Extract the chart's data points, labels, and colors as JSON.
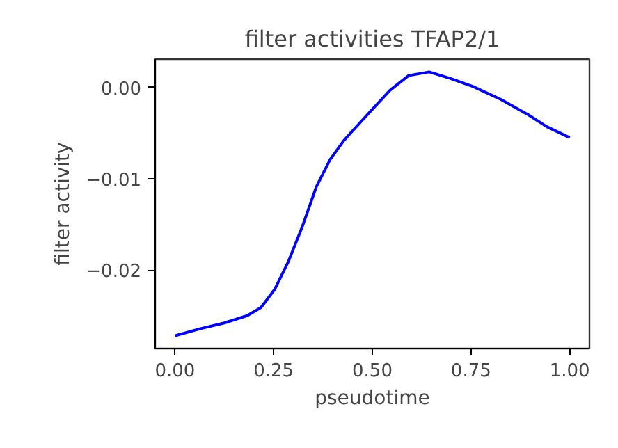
{
  "chart_data": {
    "type": "line",
    "title": "filter activities TFAP2/1",
    "xlabel": "pseudotime",
    "ylabel": "filter activity",
    "x": [
      0,
      0.067,
      0.125,
      0.183,
      0.218,
      0.253,
      0.288,
      0.323,
      0.358,
      0.393,
      0.428,
      0.487,
      0.545,
      0.592,
      0.644,
      0.697,
      0.755,
      0.825,
      0.895,
      0.942,
      1.0
    ],
    "series": [
      {
        "color": "#0000ff",
        "values": [
          -0.0272,
          -0.0264,
          -0.0258,
          -0.025,
          -0.0241,
          -0.0221,
          -0.019,
          -0.0152,
          -0.0109,
          -0.0079,
          -0.0058,
          -0.003,
          -0.0003,
          0.0013,
          0.0017,
          0.001,
          0.0001,
          -0.0013,
          -0.003,
          -0.0043,
          -0.0055
        ]
      }
    ],
    "xlim": [
      -0.05,
      1.05
    ],
    "ylim": [
      -0.0286,
      0.0031
    ],
    "xticks": [
      {
        "value": 0,
        "label": "0.00"
      },
      {
        "value": 0.25,
        "label": "0.25"
      },
      {
        "value": 0.5,
        "label": "0.50"
      },
      {
        "value": 0.75,
        "label": "0.75"
      },
      {
        "value": 1,
        "label": "1.00"
      }
    ],
    "yticks": [
      {
        "value": 0,
        "label": "0.00"
      },
      {
        "value": -0.01,
        "label": "−0.01"
      },
      {
        "value": -0.02,
        "label": "−0.02"
      }
    ],
    "grid": false,
    "marker": "none",
    "line_style": "solid"
  }
}
